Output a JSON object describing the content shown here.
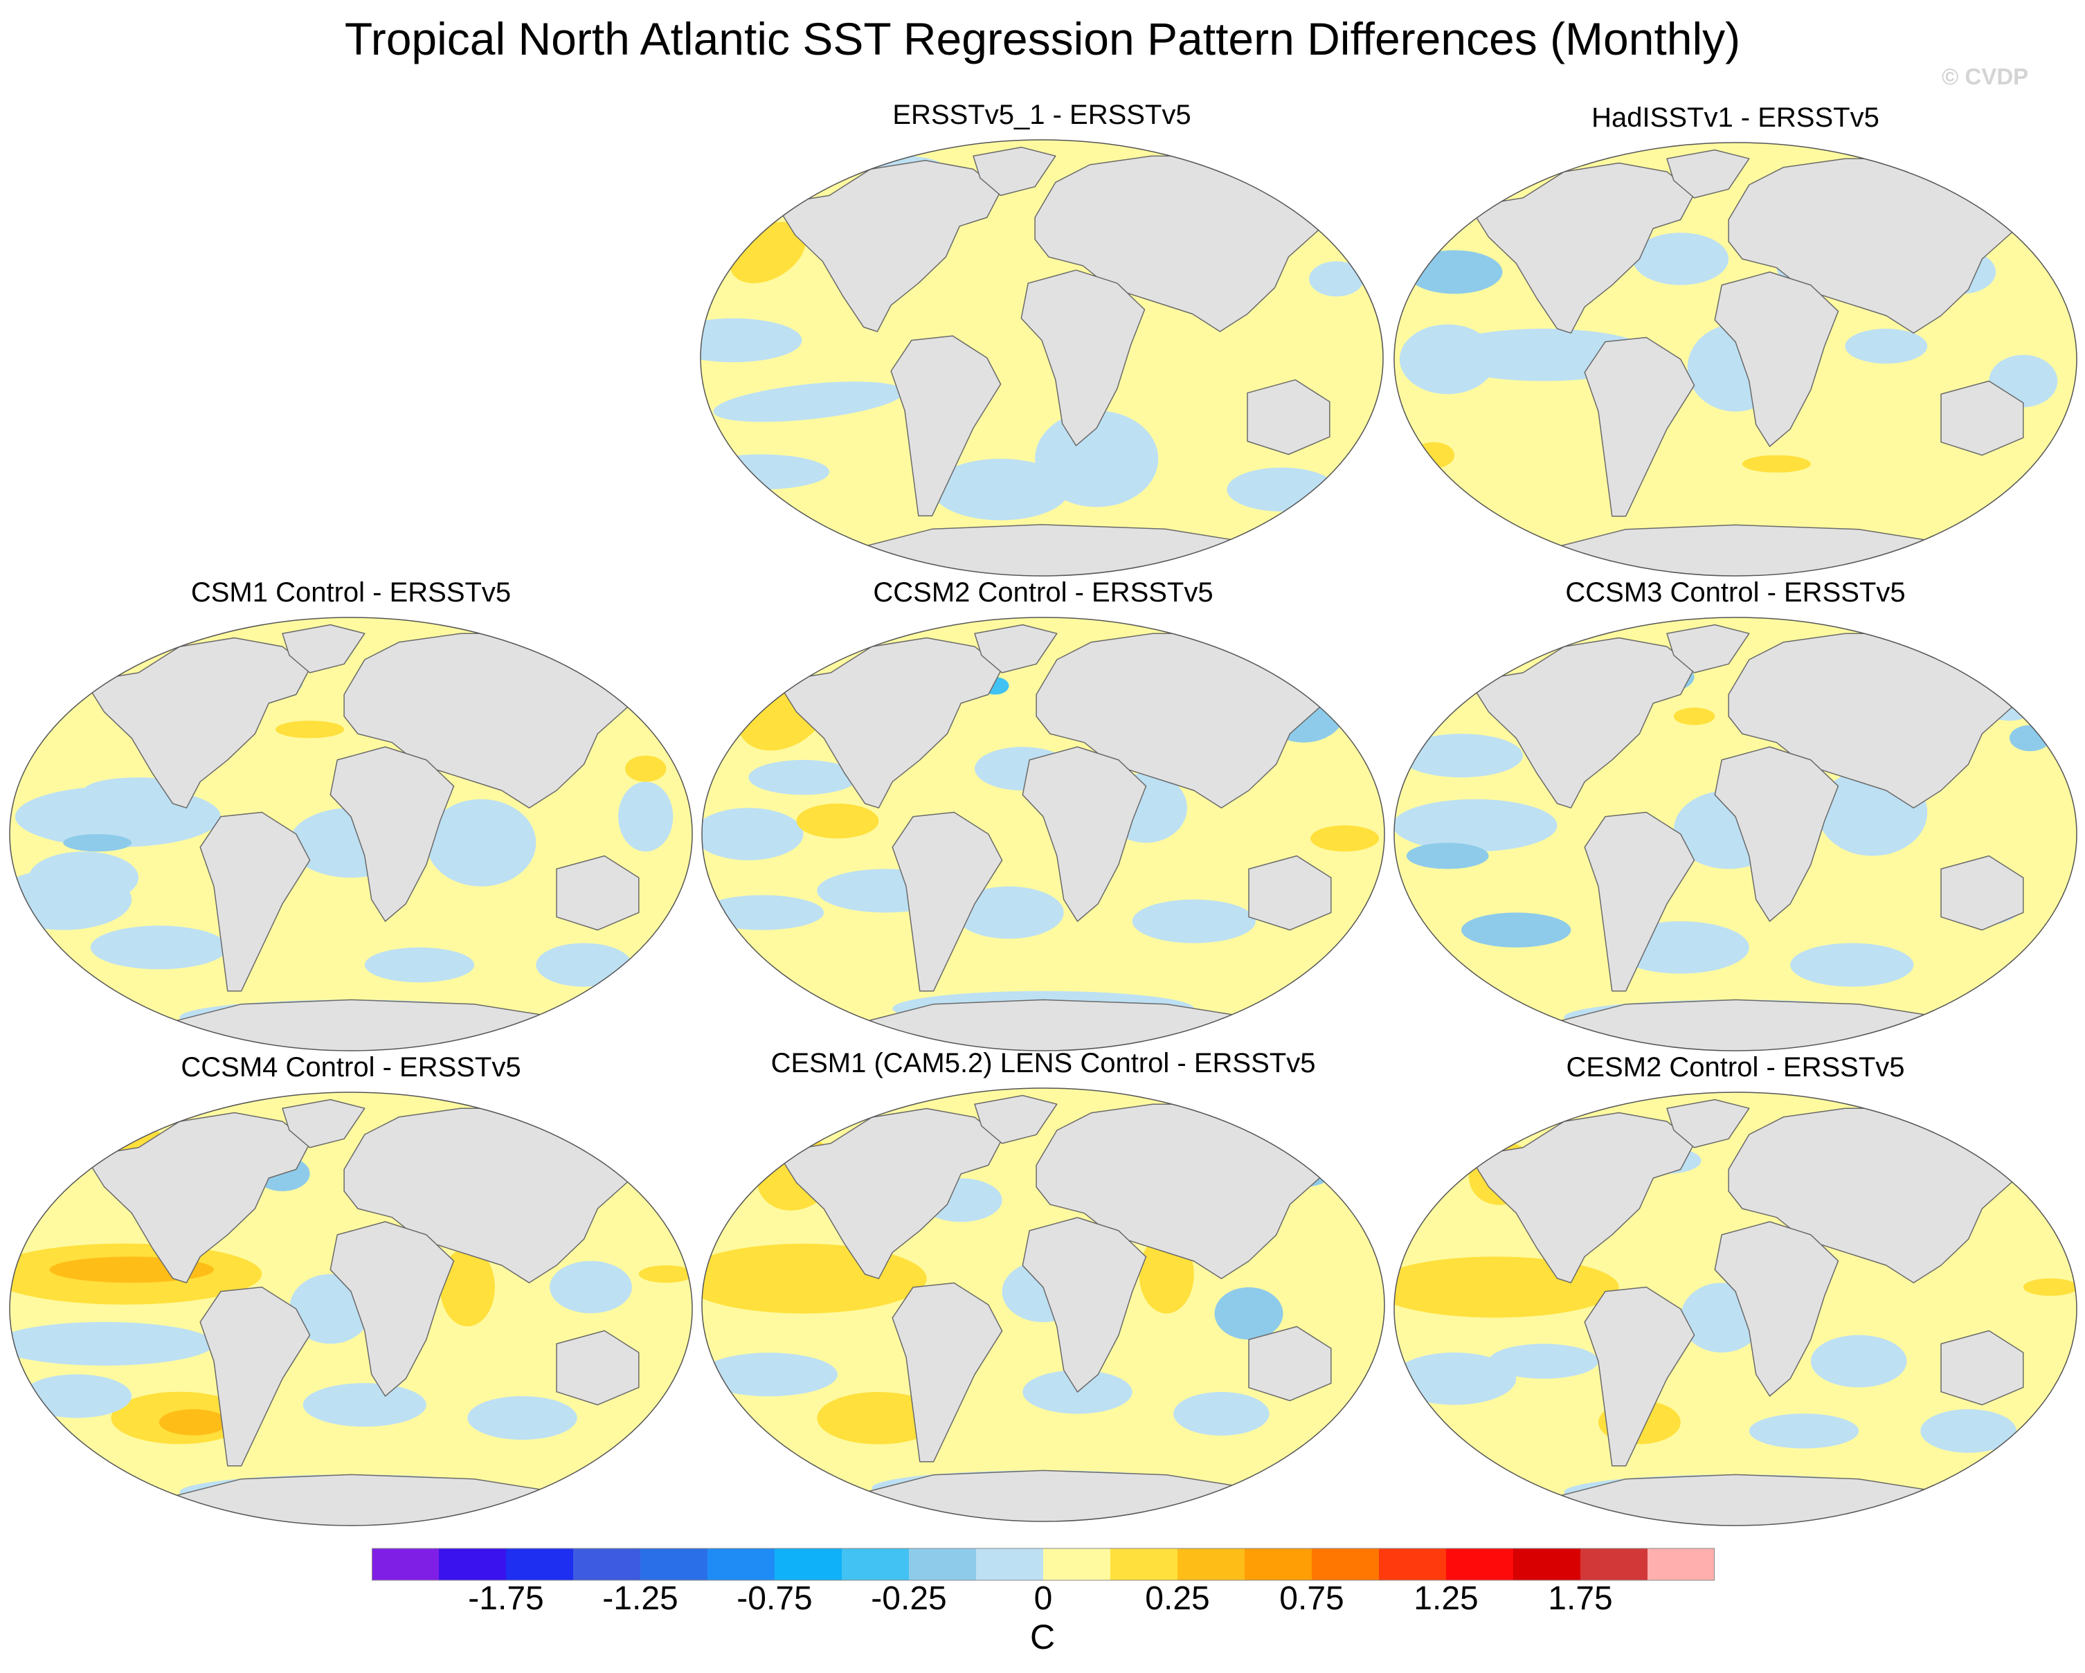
{
  "title": "Tropical North Atlantic SST Regression Pattern Differences (Monthly)",
  "credit": "© CVDP",
  "panels": [
    {
      "title": "ERSSTv5_1 - ERSSTv5"
    },
    {
      "title": "HadISSTv1 - ERSSTv5"
    },
    {
      "title": "CSM1 Control - ERSSTv5"
    },
    {
      "title": "CCSM2 Control - ERSSTv5"
    },
    {
      "title": "CCSM3 Control - ERSSTv5"
    },
    {
      "title": "CCSM4 Control - ERSSTv5"
    },
    {
      "title": "CESM1 (CAM5.2) LENS Control - ERSSTv5"
    },
    {
      "title": "CESM2 Control - ERSSTv5"
    }
  ],
  "colorbar": {
    "unit": "C",
    "colors": [
      "#7f1fe6",
      "#3a12ee",
      "#1e2ff2",
      "#3c5be0",
      "#2b6fe8",
      "#1f8cf6",
      "#0fb1f8",
      "#42c2f2",
      "#8ecbea",
      "#bde0f3",
      "#fffaa0",
      "#ffe03c",
      "#ffbd18",
      "#ff9e05",
      "#ff7700",
      "#ff3a0c",
      "#ff0a0a",
      "#d80000",
      "#d23838",
      "#ffb0ae"
    ],
    "labels": [
      "-1.75",
      "-1.25",
      "-0.75",
      "-0.25",
      "0",
      "0.25",
      "0.75",
      "1.25",
      "1.75"
    ]
  },
  "colors": {
    "land": "#e1e1e1",
    "coast": "#6a6a6a",
    "warm_light": "#fffaa0",
    "warm": "#ffe03c",
    "warm_strong": "#ffbd18",
    "cool_light": "#bde0f3",
    "cool": "#8ecbea",
    "cool_strong": "#42c2f2"
  }
}
